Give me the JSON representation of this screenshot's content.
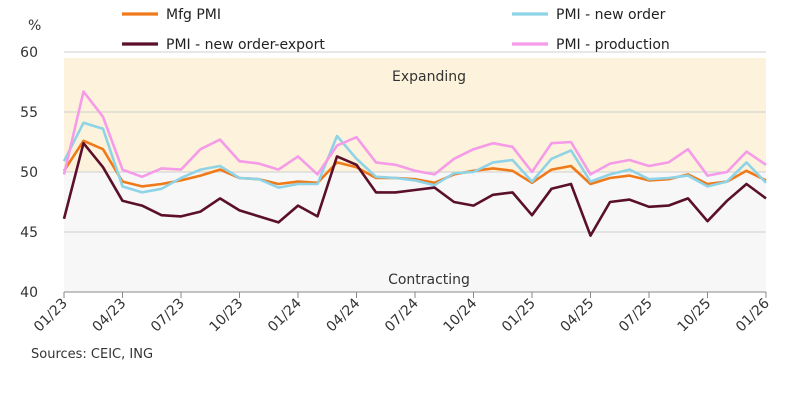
{
  "chart_data": {
    "type": "line",
    "ylabel": "%",
    "ylim": [
      40,
      60
    ],
    "yticks": [
      40,
      45,
      50,
      55,
      60
    ],
    "x": [
      "01/23",
      "02/23",
      "03/23",
      "04/23",
      "05/23",
      "06/23",
      "07/23",
      "08/23",
      "09/23",
      "10/23",
      "11/23",
      "12/23",
      "01/24",
      "02/24",
      "03/24",
      "04/24",
      "05/24",
      "06/24",
      "07/24",
      "08/24",
      "09/24",
      "10/24",
      "11/24",
      "12/24",
      "01/25",
      "02/25",
      "03/25",
      "04/25",
      "05/25",
      "06/25",
      "07/25",
      "08/25",
      "09/25",
      "10/25",
      "11/25",
      "12/25",
      "01/26"
    ],
    "xtick_labels": [
      "01/23",
      "04/23",
      "07/23",
      "10/23",
      "01/24",
      "04/24",
      "07/24",
      "10/24",
      "01/25",
      "04/25",
      "07/25",
      "10/25",
      "01/26"
    ],
    "zones": [
      {
        "label": "Expanding",
        "range": [
          50,
          59.5
        ],
        "color": "#fdf3dc"
      },
      {
        "label": "Contracting",
        "range": [
          40,
          50
        ],
        "color": "#f7f7f7"
      }
    ],
    "series": [
      {
        "name": "Mfg PMI",
        "color": "#f07a1a",
        "values": [
          50.1,
          52.6,
          51.9,
          49.2,
          48.8,
          49.0,
          49.3,
          49.7,
          50.2,
          49.5,
          49.4,
          49.0,
          49.2,
          49.1,
          50.8,
          50.4,
          49.5,
          49.5,
          49.4,
          49.1,
          49.8,
          50.1,
          50.3,
          50.1,
          49.1,
          50.2,
          50.5,
          49.0,
          49.5,
          49.7,
          49.3,
          49.4,
          49.8,
          49.0,
          49.2,
          50.1,
          49.3
        ]
      },
      {
        "name": "PMI - new order",
        "color": "#8ed3e6",
        "values": [
          50.9,
          54.1,
          53.6,
          48.8,
          48.3,
          48.6,
          49.5,
          50.2,
          50.5,
          49.5,
          49.4,
          48.7,
          49.0,
          49.0,
          53.0,
          51.1,
          49.6,
          49.5,
          49.3,
          48.9,
          49.9,
          50.0,
          50.8,
          51.0,
          49.2,
          51.1,
          51.8,
          49.2,
          49.8,
          50.2,
          49.4,
          49.5,
          49.7,
          48.8,
          49.2,
          50.8,
          49.1
        ]
      },
      {
        "name": "PMI - new order-export",
        "color": "#5a0f2a",
        "values": [
          46.1,
          52.4,
          50.4,
          47.6,
          47.2,
          46.4,
          46.3,
          46.7,
          47.8,
          46.8,
          46.3,
          45.8,
          47.2,
          46.3,
          51.3,
          50.6,
          48.3,
          48.3,
          48.5,
          48.7,
          47.5,
          47.2,
          48.1,
          48.3,
          46.4,
          48.6,
          49.0,
          44.7,
          47.5,
          47.7,
          47.1,
          47.2,
          47.8,
          45.9,
          47.6,
          49.0,
          47.8
        ]
      },
      {
        "name": "PMI - production",
        "color": "#f59be8",
        "values": [
          49.8,
          56.7,
          54.6,
          50.2,
          49.6,
          50.3,
          50.2,
          51.9,
          52.7,
          50.9,
          50.7,
          50.2,
          51.3,
          49.8,
          52.2,
          52.9,
          50.8,
          50.6,
          50.1,
          49.8,
          51.1,
          51.9,
          52.4,
          52.1,
          50.0,
          52.4,
          52.5,
          49.8,
          50.7,
          51.0,
          50.5,
          50.8,
          51.9,
          49.7,
          50.0,
          51.7,
          50.6
        ]
      }
    ],
    "legend_placement": "top",
    "grid": "horizontal"
  },
  "source_note": "Sources: CEIC, ING"
}
